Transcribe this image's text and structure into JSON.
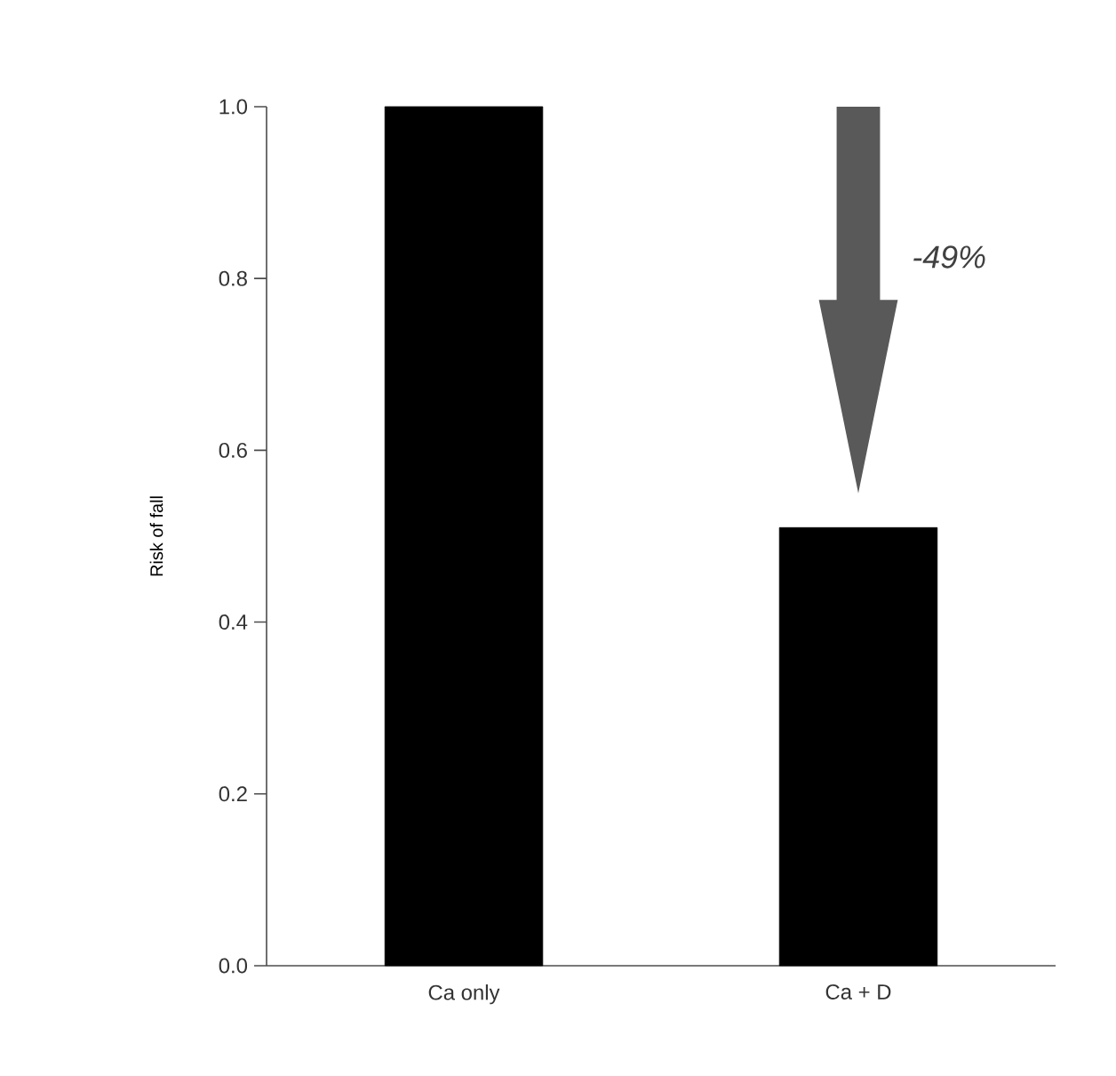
{
  "chart_data": {
    "type": "bar",
    "ylabel": "Risk of fall",
    "categories": [
      "Ca only",
      "Ca + D"
    ],
    "values": [
      1.0,
      0.51
    ],
    "color": "#000000",
    "ylim": [
      0,
      1
    ],
    "yticks": [
      {
        "value": 0,
        "label": "0.0"
      },
      0.2,
      0.4,
      0.6,
      0.8,
      {
        "value": 1,
        "label": "1.0"
      }
    ],
    "annotations": [
      "-49%"
    ]
  }
}
